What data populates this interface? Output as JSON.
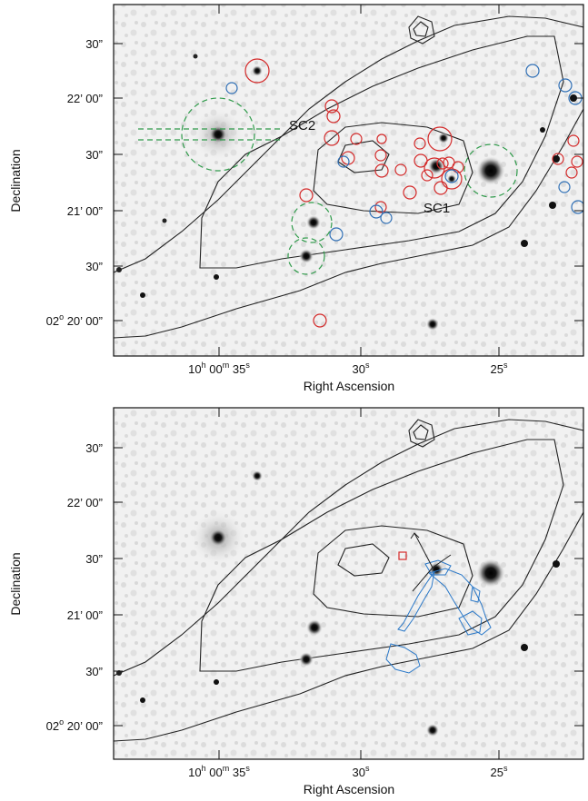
{
  "top_panel": {
    "xlabel": "Right Ascension",
    "ylabel": "Declination",
    "ra_ticks": [
      {
        "h": "10",
        "hu": "h",
        "m": "00",
        "mu": "m",
        "s": "35",
        "su": "s"
      },
      {
        "s": "30",
        "su": "s"
      },
      {
        "s": "25",
        "su": "s"
      }
    ],
    "dec_ticks": [
      "30”",
      "22’ 00”",
      "30”",
      "21’ 00”",
      "30”",
      "02° 20’ 00”"
    ],
    "dec_ticks_parts": [
      {
        "d": "",
        "m": "",
        "s": "30”"
      },
      {
        "d": "",
        "m": "22’",
        "s": "00”"
      },
      {
        "d": "",
        "m": "",
        "s": "30”"
      },
      {
        "d": "",
        "m": "21’",
        "s": "00”"
      },
      {
        "d": "",
        "m": "",
        "s": "30”"
      },
      {
        "d": "02",
        "du": "o",
        "m": "20’",
        "s": "00”"
      }
    ],
    "labels": {
      "sc1": "SC1",
      "sc2": "SC2"
    },
    "colors": {
      "red": "#d42a2a",
      "blue": "#2f6fb5",
      "green": "#2f9a4a",
      "contour": "#222222",
      "bg": "#ececec"
    }
  },
  "bottom_panel": {
    "xlabel": "Right Ascension",
    "ylabel": "Declination",
    "colors": {
      "contour_blue": "#2a78c8",
      "marker": "#d42a2a"
    }
  }
}
